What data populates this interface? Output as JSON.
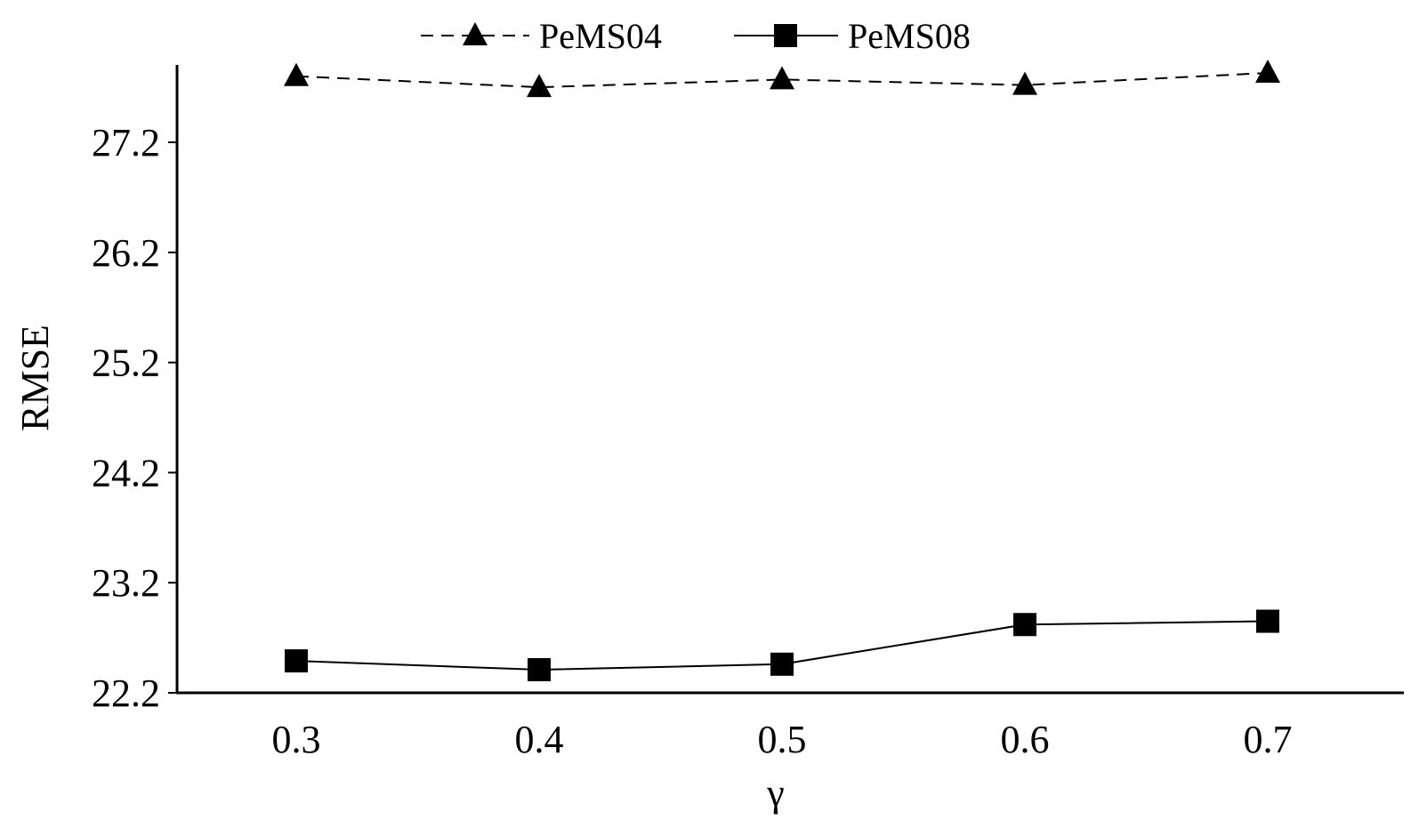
{
  "chart_data": {
    "type": "line",
    "title": "",
    "xlabel": "γ",
    "ylabel": "RMSE",
    "categories": [
      "0.3",
      "0.4",
      "0.5",
      "0.6",
      "0.7"
    ],
    "y_ticks": [
      "22.2",
      "23.2",
      "24.2",
      "25.2",
      "26.2",
      "27.2"
    ],
    "ylim": [
      22.2,
      27.9
    ],
    "grid": false,
    "legend_position": "top-center",
    "series": [
      {
        "name": "PeMS04",
        "values": [
          27.8,
          27.7,
          27.77,
          27.72,
          27.83
        ],
        "marker": "triangle",
        "line_style": "dashed",
        "color": "#000000"
      },
      {
        "name": "PeMS08",
        "values": [
          22.49,
          22.41,
          22.46,
          22.82,
          22.85
        ],
        "marker": "square",
        "line_style": "solid",
        "color": "#000000"
      }
    ]
  }
}
